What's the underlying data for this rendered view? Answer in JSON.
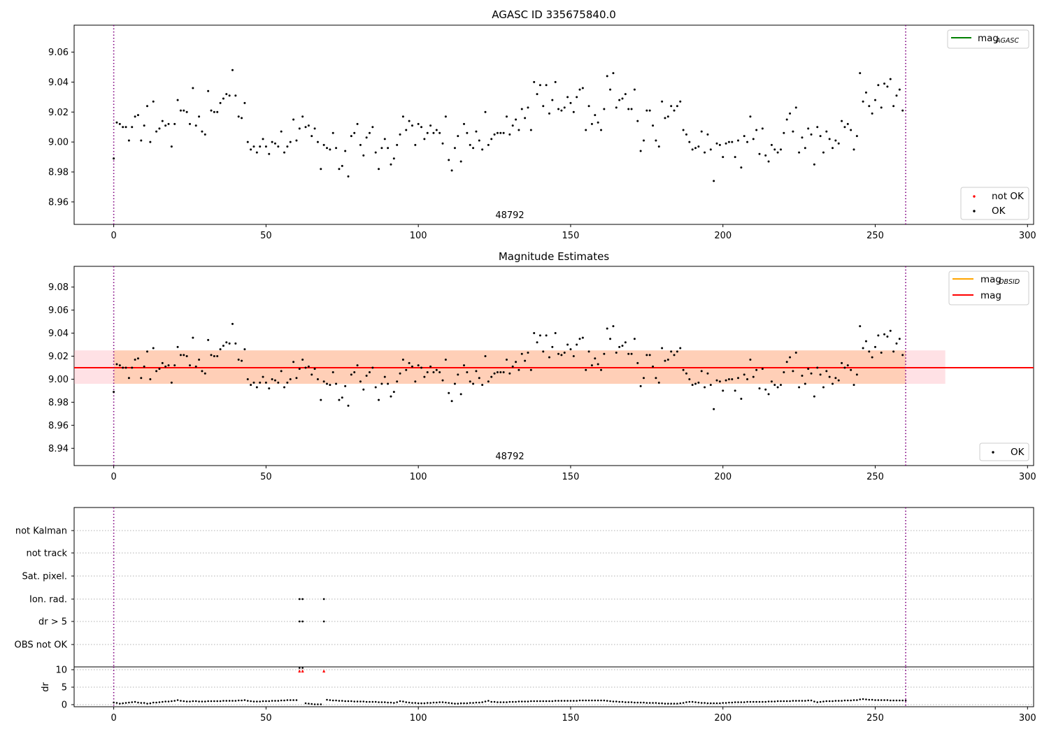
{
  "chart_data": [
    {
      "type": "scatter",
      "title": "AGASC ID 335675840.0",
      "annotation": "48792",
      "xlim": [
        -13,
        302
      ],
      "ylim": [
        8.945,
        9.078
      ],
      "xticks": [
        0,
        50,
        100,
        150,
        200,
        250,
        300
      ],
      "yticks": [
        8.96,
        8.98,
        9.0,
        9.02,
        9.04,
        9.06
      ],
      "vlines": [
        0,
        260
      ],
      "grid": false,
      "legend_top_right": {
        "entries": [
          {
            "base": "mag",
            "sub": "AGASC",
            "color": "#008000"
          }
        ]
      },
      "legend_bottom_right": {
        "entries": [
          {
            "label": "not OK",
            "color": "#ff0000"
          },
          {
            "label": "OK",
            "color": "#000000"
          }
        ]
      },
      "series": [
        {
          "name": "OK",
          "color": "#000000",
          "x": "0..260 step 1",
          "y": [
            8.989,
            9.013,
            9.012,
            9.01,
            9.01,
            9.001,
            9.01,
            9.017,
            9.018,
            9.001,
            9.011,
            9.024,
            9.0,
            9.027,
            9.007,
            9.009,
            9.014,
            9.011,
            9.012,
            8.997,
            9.012,
            9.028,
            9.021,
            9.021,
            9.02,
            9.012,
            9.036,
            9.011,
            9.017,
            9.007,
            9.005,
            9.034,
            9.021,
            9.02,
            9.02,
            9.026,
            9.029,
            9.032,
            9.031,
            9.048,
            9.031,
            9.017,
            9.016,
            9.026,
            9.0,
            8.995,
            8.997,
            8.993,
            8.997,
            9.002,
            8.997,
            8.992,
            9.0,
            8.999,
            8.997,
            9.007,
            8.993,
            8.997,
            9.0,
            9.015,
            9.001,
            9.009,
            9.017,
            9.01,
            9.011,
            9.004,
            9.009,
            9.0,
            8.982,
            8.998,
            8.996,
            8.995,
            9.006,
            8.996,
            8.982,
            8.984,
            8.994,
            8.977,
            9.004,
            9.006,
            9.012,
            8.998,
            8.991,
            9.003,
            9.006,
            9.01,
            8.993,
            8.982,
            8.996,
            9.002,
            8.996,
            8.985,
            8.989,
            8.998,
            9.005,
            9.017,
            9.008,
            9.014,
            9.011,
            8.998,
            9.012,
            9.01,
            9.002,
            9.006,
            9.011,
            9.006,
            9.008,
            9.006,
            8.999,
            9.017,
            8.988,
            8.981,
            8.996,
            9.004,
            8.987,
            9.012,
            9.006,
            8.998,
            8.996,
            9.007,
            9.001,
            8.995,
            9.02,
            8.998,
            9.002,
            9.005,
            9.006,
            9.006,
            9.006,
            9.017,
            9.005,
            9.011,
            9.015,
            9.008,
            9.022,
            9.016,
            9.023,
            9.008,
            9.04,
            9.032,
            9.038,
            9.024,
            9.038,
            9.019,
            9.028,
            9.04,
            9.022,
            9.021,
            9.023,
            9.03,
            9.026,
            9.02,
            9.03,
            9.035,
            9.036,
            9.008,
            9.024,
            9.012,
            9.018,
            9.013,
            9.008,
            9.022,
            9.044,
            9.035,
            9.046,
            9.023,
            9.028,
            9.029,
            9.032,
            9.022,
            9.022,
            9.035,
            9.014,
            8.994,
            9.001,
            9.021,
            9.021,
            9.011,
            9.001,
            8.997,
            9.027,
            9.016,
            9.017,
            9.024,
            9.021,
            9.024,
            9.027,
            9.008,
            9.005,
            9.0,
            8.995,
            8.996,
            8.997,
            9.007,
            8.993,
            9.005,
            8.995,
            8.974,
            8.999,
            8.998,
            8.99,
            8.999,
            9.0,
            9.0,
            8.99,
            9.001,
            8.983,
            9.004,
            9.0,
            9.017,
            9.002,
            9.008,
            8.992,
            9.009,
            8.991,
            8.987,
            8.998,
            8.995,
            8.993,
            8.995,
            9.006,
            9.015,
            9.019,
            9.007,
            9.023,
            8.993,
            9.003,
            8.996,
            9.009,
            9.005,
            8.985,
            9.01,
            9.004,
            8.993,
            9.007,
            9.002,
            8.996,
            9.001,
            8.999,
            9.014,
            9.01,
            9.012,
            9.008,
            8.995,
            9.004,
            9.046,
            9.027,
            9.033,
            9.024,
            9.019,
            9.028,
            9.038,
            9.023,
            9.039,
            9.037,
            9.042,
            9.024,
            9.031,
            9.035,
            9.021
          ]
        }
      ]
    },
    {
      "type": "scatter",
      "title": "Magnitude Estimates",
      "annotation": "48792",
      "xlim": [
        -13,
        302
      ],
      "ylim": [
        8.925,
        9.098
      ],
      "xticks": [
        0,
        50,
        100,
        150,
        200,
        250,
        300
      ],
      "yticks": [
        8.94,
        8.96,
        8.98,
        9.0,
        9.02,
        9.04,
        9.06,
        9.08
      ],
      "vlines": [
        0,
        260
      ],
      "grid": false,
      "mag": 9.01,
      "mag_band": [
        8.996,
        9.025
      ],
      "mag_band_x": [
        -13,
        273
      ],
      "obsid_band_x": [
        0,
        260
      ],
      "legend_top_right": {
        "entries": [
          {
            "base": "mag",
            "sub": "OBSID",
            "color": "#ffa500"
          },
          {
            "base": "mag",
            "sub": "",
            "color": "#ff0000"
          }
        ]
      },
      "legend_bottom_right": {
        "entries": [
          {
            "label": "OK",
            "color": "#000000"
          }
        ]
      },
      "series_ref": "same points as panel 1 series OK"
    },
    {
      "type": "scatter",
      "title": "",
      "xlim": [
        -13,
        302
      ],
      "xticks": [
        0,
        50,
        100,
        150,
        200,
        250,
        300
      ],
      "vlines": [
        0,
        260
      ],
      "flag_rows": [
        "not Kalman",
        "not track",
        "Sat. pixel.",
        "Ion. rad.",
        "dr > 5",
        "OBS not OK"
      ],
      "flag_points": [
        {
          "row": "Ion. rad.",
          "x": [
            61,
            62,
            69
          ]
        },
        {
          "row": "dr > 5",
          "x": [
            61,
            62,
            69
          ]
        }
      ],
      "dr_axis": {
        "ylabel": "dr",
        "ylim": [
          -0.6,
          10.8
        ],
        "yticks": [
          0,
          5,
          10
        ],
        "clipped_markers_x": [
          61,
          62,
          69
        ],
        "y": [
          0.6,
          0.5,
          0.3,
          0.4,
          0.5,
          0.6,
          0.7,
          0.8,
          0.6,
          0.5,
          0.5,
          0.3,
          0.4,
          0.6,
          0.6,
          0.7,
          0.8,
          0.9,
          0.9,
          1.0,
          1.1,
          1.3,
          1.1,
          1.0,
          0.9,
          0.9,
          1.0,
          1.0,
          0.9,
          0.9,
          0.9,
          1.0,
          1.0,
          1.0,
          1.0,
          1.0,
          1.1,
          1.1,
          1.1,
          1.1,
          1.1,
          1.2,
          1.2,
          1.3,
          1.1,
          1.0,
          0.9,
          0.9,
          0.9,
          1.0,
          1.0,
          1.0,
          1.1,
          1.1,
          1.1,
          1.2,
          1.2,
          1.3,
          1.3,
          1.3,
          1.3,
          10.5,
          10.5,
          0.4,
          0.3,
          0.2,
          0.1,
          0.1,
          0.1,
          15,
          1.4,
          1.3,
          1.2,
          1.2,
          1.1,
          1.1,
          1.0,
          1.0,
          1.0,
          0.9,
          0.9,
          0.9,
          0.9,
          0.8,
          0.8,
          0.8,
          0.8,
          0.7,
          0.7,
          0.7,
          0.6,
          0.6,
          0.5,
          0.7,
          1.0,
          0.9,
          0.7,
          0.6,
          0.5,
          0.5,
          0.4,
          0.4,
          0.4,
          0.5,
          0.5,
          0.6,
          0.6,
          0.7,
          0.7,
          0.6,
          0.5,
          0.4,
          0.3,
          0.3,
          0.4,
          0.4,
          0.4,
          0.5,
          0.5,
          0.6,
          0.6,
          0.7,
          0.9,
          1.1,
          0.8,
          0.8,
          0.7,
          0.7,
          0.7,
          0.7,
          0.8,
          0.8,
          0.8,
          0.9,
          0.9,
          0.9,
          0.9,
          1.0,
          1.0,
          1.0,
          1.0,
          1.0,
          1.0,
          1.0,
          1.0,
          1.1,
          1.1,
          1.1,
          1.1,
          1.1,
          1.1,
          1.1,
          1.1,
          1.2,
          1.2,
          1.2,
          1.2,
          1.2,
          1.2,
          1.2,
          1.2,
          1.2,
          1.1,
          1.0,
          0.9,
          0.9,
          0.8,
          0.8,
          0.7,
          0.7,
          0.7,
          0.6,
          0.6,
          0.6,
          0.6,
          0.5,
          0.5,
          0.5,
          0.5,
          0.4,
          0.4,
          0.3,
          0.3,
          0.3,
          0.3,
          0.3,
          0.4,
          0.5,
          0.7,
          0.8,
          0.8,
          0.7,
          0.6,
          0.5,
          0.5,
          0.4,
          0.4,
          0.4,
          0.4,
          0.4,
          0.5,
          0.5,
          0.6,
          0.6,
          0.7,
          0.7,
          0.7,
          0.7,
          0.8,
          0.8,
          0.8,
          0.8,
          0.8,
          0.8,
          0.8,
          0.9,
          0.9,
          0.9,
          1.0,
          1.0,
          1.0,
          1.0,
          1.0,
          1.1,
          1.1,
          1.1,
          1.1,
          1.1,
          1.2,
          1.2,
          0.9,
          0.7,
          0.8,
          0.9,
          1.0,
          1.0,
          1.0,
          1.1,
          1.1,
          1.1,
          1.2,
          1.2,
          1.2,
          1.3,
          1.3,
          1.5,
          1.6,
          1.5,
          1.4,
          1.4,
          1.3,
          1.3,
          1.3,
          1.3,
          1.3,
          1.2,
          1.2,
          1.2,
          1.2,
          1.2,
          1.2
        ]
      }
    }
  ]
}
